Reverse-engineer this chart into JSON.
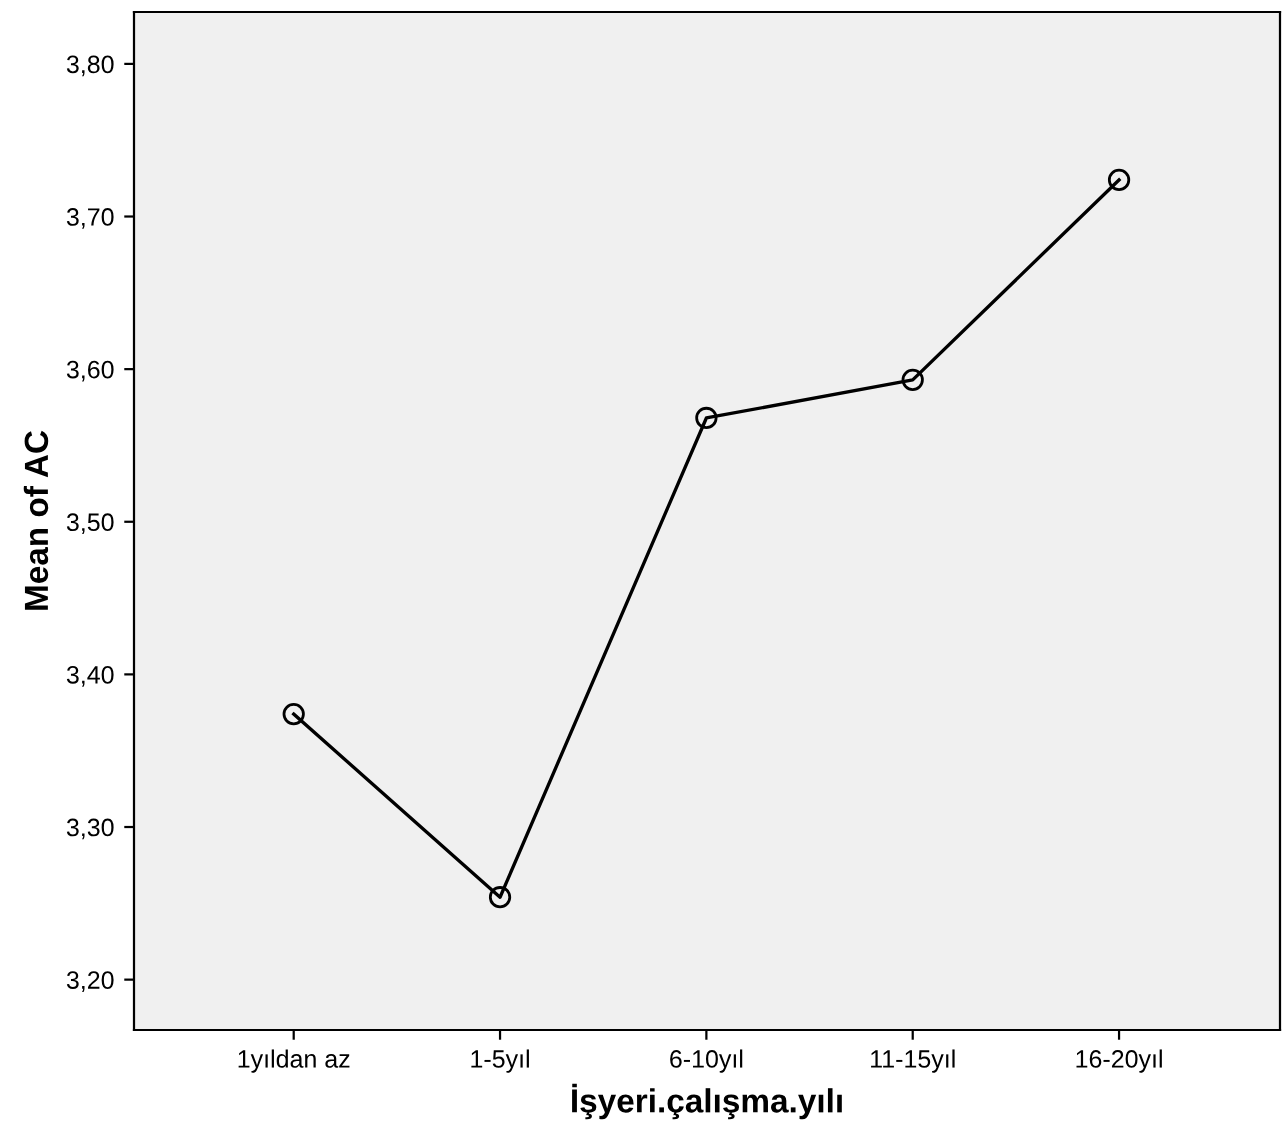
{
  "chart_data": {
    "type": "line",
    "xlabel": "İşyeri.çalışma.yılı",
    "ylabel": "Mean of AC",
    "categories": [
      "1yıldan az",
      "1-5yıl",
      "6-10yıl",
      "11-15yıl",
      "16-20yıl"
    ],
    "series": [
      {
        "color": "#000000",
        "values": [
          3.374,
          3.254,
          3.568,
          3.593,
          3.724
        ]
      }
    ],
    "ylim": [
      3.167,
      3.834
    ],
    "yticks": [
      {
        "value": 3.2,
        "label": "3,20"
      },
      {
        "value": 3.3,
        "label": "3,30"
      },
      {
        "value": 3.4,
        "label": "3,40"
      },
      {
        "value": 3.5,
        "label": "3,50"
      },
      {
        "value": 3.6,
        "label": "3,60"
      },
      {
        "value": 3.7,
        "label": "3,70"
      },
      {
        "value": 3.8,
        "label": "3,80"
      }
    ],
    "marker": "circle",
    "line_style": "solid",
    "grid": false,
    "legend": false
  }
}
